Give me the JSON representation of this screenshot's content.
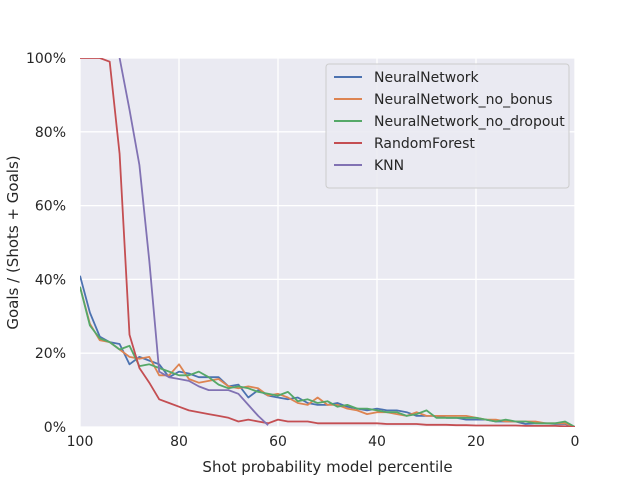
{
  "chart_data": {
    "type": "line",
    "title": "",
    "xlabel": "Shot probability model percentile",
    "ylabel": "Goals / (Shots + Goals)",
    "xlim": [
      100,
      0
    ],
    "ylim": [
      0,
      100
    ],
    "x_ticks": [
      100,
      80,
      60,
      40,
      20,
      0
    ],
    "x_tick_labels": [
      "100",
      "80",
      "60",
      "40",
      "20",
      "0"
    ],
    "y_ticks": [
      0,
      20,
      40,
      60,
      80,
      100
    ],
    "y_tick_labels": [
      "0%",
      "20%",
      "40%",
      "60%",
      "80%",
      "100%"
    ],
    "grid": true,
    "legend_position": "top-right",
    "series": [
      {
        "name": "NeuralNetwork",
        "color": "#4c72b0",
        "x": [
          100,
          98,
          96,
          94,
          92,
          90,
          88,
          86,
          84,
          82,
          80,
          78,
          76,
          74,
          72,
          70,
          68,
          66,
          64,
          62,
          60,
          58,
          56,
          54,
          52,
          50,
          48,
          46,
          44,
          42,
          40,
          38,
          36,
          34,
          32,
          30,
          28,
          26,
          24,
          22,
          20,
          18,
          16,
          14,
          12,
          10,
          8,
          6,
          4,
          2,
          0
        ],
        "y": [
          41,
          31,
          24.5,
          23,
          22.5,
          17,
          19,
          18,
          17,
          13.5,
          15,
          14.5,
          13.5,
          13.5,
          13.5,
          11,
          11.5,
          8,
          10,
          8.5,
          8,
          7.5,
          8,
          6.5,
          6,
          6,
          6.5,
          5.5,
          5,
          4.5,
          5,
          4.5,
          4.5,
          4,
          3,
          3,
          3,
          2.5,
          2.5,
          2,
          2,
          2,
          1.5,
          1.5,
          1.5,
          0.8,
          1,
          1,
          0.8,
          0.8,
          0
        ]
      },
      {
        "name": "NeuralNetwork_no_bonus",
        "color": "#dd8452",
        "x": [
          100,
          98,
          96,
          94,
          92,
          90,
          88,
          86,
          84,
          82,
          80,
          78,
          76,
          74,
          72,
          70,
          68,
          66,
          64,
          62,
          60,
          58,
          56,
          54,
          52,
          50,
          48,
          46,
          44,
          42,
          40,
          38,
          36,
          34,
          32,
          30,
          28,
          26,
          24,
          22,
          20,
          18,
          16,
          14,
          12,
          10,
          8,
          6,
          4,
          2,
          0
        ],
        "y": [
          38,
          28,
          23.5,
          23,
          21,
          19,
          18.5,
          19,
          14,
          14,
          17,
          13,
          12,
          12.5,
          13,
          11,
          10.5,
          11,
          10.5,
          8.5,
          9,
          8,
          6.5,
          6,
          8,
          6,
          6,
          5,
          4.5,
          3.5,
          4,
          4,
          3.5,
          3,
          4,
          3,
          3,
          3,
          3,
          3,
          2.5,
          2,
          2,
          1.5,
          1.5,
          1.5,
          1.5,
          1,
          1,
          1,
          0
        ]
      },
      {
        "name": "NeuralNetwork_no_dropout",
        "color": "#55a868",
        "x": [
          100,
          98,
          96,
          94,
          92,
          90,
          88,
          86,
          84,
          82,
          80,
          78,
          76,
          74,
          72,
          70,
          68,
          66,
          64,
          62,
          60,
          58,
          56,
          54,
          52,
          50,
          48,
          46,
          44,
          42,
          40,
          38,
          36,
          34,
          32,
          30,
          28,
          26,
          24,
          22,
          20,
          18,
          16,
          14,
          12,
          10,
          8,
          6,
          4,
          2,
          0
        ],
        "y": [
          38,
          27.5,
          24,
          23,
          21,
          22,
          16.5,
          17,
          16,
          15,
          14,
          14,
          15,
          13.5,
          11.5,
          10.5,
          11,
          10.5,
          9.5,
          9,
          8.5,
          9.5,
          7,
          7.5,
          6.5,
          7,
          5.5,
          6,
          5,
          5,
          4.5,
          4,
          4,
          3,
          3.5,
          4.5,
          2.5,
          2.5,
          2.5,
          2.5,
          2.5,
          2,
          1.5,
          2,
          1.5,
          1.5,
          1,
          1,
          1,
          1.5,
          0
        ]
      },
      {
        "name": "RandomForest",
        "color": "#c44e52",
        "x": [
          100,
          98,
          96,
          94,
          92,
          90,
          88,
          86,
          84,
          82,
          80,
          78,
          76,
          74,
          72,
          70,
          68,
          66,
          64,
          62,
          60,
          58,
          56,
          54,
          52,
          50,
          48,
          46,
          44,
          42,
          40,
          38,
          36,
          34,
          32,
          30,
          28,
          26,
          24,
          22,
          20,
          18,
          16,
          14,
          12,
          10,
          8,
          6,
          4,
          2,
          0
        ],
        "y": [
          100,
          100,
          100,
          99,
          74,
          25,
          16,
          12,
          7.5,
          6.5,
          5.5,
          4.5,
          4,
          3.5,
          3,
          2.5,
          1.5,
          2,
          1.5,
          1,
          2,
          1.5,
          1.5,
          1.5,
          1,
          1,
          1,
          1,
          1,
          1,
          1,
          0.8,
          0.8,
          0.8,
          0.8,
          0.6,
          0.6,
          0.6,
          0.5,
          0.5,
          0.4,
          0.4,
          0.4,
          0.4,
          0.4,
          0.3,
          0.3,
          0.3,
          0.3,
          0.2,
          0
        ]
      },
      {
        "name": "KNN",
        "color": "#8172b3",
        "x": [
          92,
          90,
          88,
          86,
          84,
          82,
          80,
          78,
          76,
          74,
          72,
          70,
          68,
          66,
          64,
          62
        ],
        "y": [
          100,
          86,
          71,
          45,
          15,
          13.5,
          13,
          12.5,
          11,
          10,
          10,
          10,
          9,
          6,
          3,
          0.5
        ]
      }
    ]
  }
}
